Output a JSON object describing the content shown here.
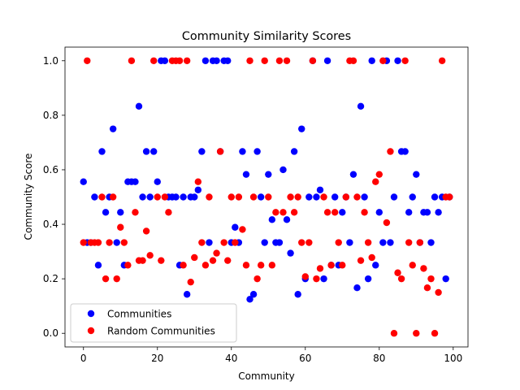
{
  "chart_data": {
    "type": "scatter",
    "title": "Community Similarity Scores",
    "xlabel": "Community",
    "ylabel": "Community Score",
    "xlim": [
      -5,
      104
    ],
    "ylim": [
      -0.05,
      1.05
    ],
    "xticks": [
      0,
      20,
      40,
      60,
      80,
      100
    ],
    "yticks": [
      0.0,
      0.2,
      0.4,
      0.6,
      0.8,
      1.0
    ],
    "ytick_labels": [
      "0.0",
      "0.2",
      "0.4",
      "0.6",
      "0.8",
      "1.0"
    ],
    "legend_position": "lower-left",
    "grid": false,
    "series": [
      {
        "name": "Communities",
        "color": "#0000ff",
        "points": [
          [
            0,
            0.556
          ],
          [
            1,
            0.333
          ],
          [
            2,
            0.333
          ],
          [
            3,
            0.5
          ],
          [
            4,
            0.25
          ],
          [
            5,
            0.667
          ],
          [
            6,
            0.444
          ],
          [
            7,
            0.5
          ],
          [
            8,
            0.75
          ],
          [
            9,
            0.333
          ],
          [
            10,
            0.444
          ],
          [
            11,
            0.25
          ],
          [
            12,
            0.556
          ],
          [
            13,
            0.556
          ],
          [
            14,
            0.556
          ],
          [
            15,
            0.833
          ],
          [
            16,
            0.5
          ],
          [
            17,
            0.667
          ],
          [
            18,
            0.5
          ],
          [
            19,
            0.667
          ],
          [
            20,
            0.556
          ],
          [
            21,
            1.0
          ],
          [
            22,
            1.0
          ],
          [
            23,
            0.5
          ],
          [
            24,
            0.5
          ],
          [
            25,
            0.5
          ],
          [
            26,
            0.25
          ],
          [
            27,
            0.5
          ],
          [
            28,
            0.143
          ],
          [
            29,
            0.5
          ],
          [
            30,
            0.5
          ],
          [
            31,
            0.526
          ],
          [
            32,
            0.667
          ],
          [
            33,
            1.0
          ],
          [
            34,
            0.333
          ],
          [
            35,
            1.0
          ],
          [
            36,
            1.0
          ],
          [
            37,
            0.667
          ],
          [
            38,
            1.0
          ],
          [
            39,
            1.0
          ],
          [
            40,
            0.333
          ],
          [
            41,
            0.389
          ],
          [
            42,
            0.333
          ],
          [
            43,
            0.667
          ],
          [
            44,
            0.583
          ],
          [
            45,
            0.125
          ],
          [
            46,
            0.143
          ],
          [
            47,
            0.667
          ],
          [
            48,
            0.5
          ],
          [
            49,
            0.333
          ],
          [
            50,
            0.583
          ],
          [
            51,
            0.417
          ],
          [
            52,
            0.333
          ],
          [
            53,
            0.333
          ],
          [
            54,
            0.6
          ],
          [
            55,
            0.417
          ],
          [
            56,
            0.294
          ],
          [
            57,
            0.667
          ],
          [
            58,
            0.143
          ],
          [
            59,
            0.75
          ],
          [
            60,
            0.2
          ],
          [
            61,
            0.5
          ],
          [
            62,
            1.0
          ],
          [
            63,
            0.5
          ],
          [
            64,
            0.526
          ],
          [
            65,
            0.2
          ],
          [
            66,
            1.0
          ],
          [
            67,
            0.25
          ],
          [
            68,
            0.5
          ],
          [
            69,
            0.25
          ],
          [
            70,
            0.444
          ],
          [
            71,
            0.5
          ],
          [
            72,
            0.333
          ],
          [
            73,
            0.583
          ],
          [
            74,
            0.167
          ],
          [
            75,
            0.833
          ],
          [
            76,
            0.5
          ],
          [
            77,
            0.2
          ],
          [
            78,
            1.0
          ],
          [
            79,
            0.25
          ],
          [
            80,
            0.444
          ],
          [
            81,
            0.333
          ],
          [
            82,
            1.0
          ],
          [
            83,
            0.333
          ],
          [
            84,
            0.5
          ],
          [
            85,
            1.0
          ],
          [
            86,
            0.667
          ],
          [
            87,
            0.667
          ],
          [
            88,
            0.444
          ],
          [
            89,
            0.5
          ],
          [
            90,
            0.583
          ],
          [
            91,
            0.333
          ],
          [
            92,
            0.444
          ],
          [
            93,
            0.444
          ],
          [
            94,
            0.333
          ],
          [
            95,
            0.5
          ],
          [
            96,
            0.444
          ],
          [
            97,
            0.5
          ],
          [
            98,
            0.2
          ],
          [
            99,
            0.5
          ]
        ]
      },
      {
        "name": "Random Communities",
        "color": "#ff0000",
        "points": [
          [
            0,
            0.333
          ],
          [
            1,
            1.0
          ],
          [
            2,
            0.333
          ],
          [
            3,
            0.333
          ],
          [
            4,
            0.333
          ],
          [
            5,
            0.5
          ],
          [
            6,
            0.2
          ],
          [
            7,
            0.333
          ],
          [
            8,
            0.5
          ],
          [
            9,
            0.2
          ],
          [
            10,
            0.389
          ],
          [
            11,
            0.333
          ],
          [
            12,
            0.25
          ],
          [
            13,
            1.0
          ],
          [
            14,
            0.444
          ],
          [
            15,
            0.267
          ],
          [
            16,
            0.267
          ],
          [
            17,
            0.375
          ],
          [
            18,
            0.286
          ],
          [
            19,
            1.0
          ],
          [
            20,
            0.5
          ],
          [
            21,
            0.267
          ],
          [
            22,
            0.5
          ],
          [
            23,
            0.444
          ],
          [
            24,
            1.0
          ],
          [
            25,
            1.0
          ],
          [
            26,
            1.0
          ],
          [
            27,
            0.25
          ],
          [
            28,
            1.0
          ],
          [
            29,
            0.188
          ],
          [
            30,
            0.278
          ],
          [
            31,
            0.556
          ],
          [
            32,
            0.333
          ],
          [
            33,
            0.25
          ],
          [
            34,
            0.5
          ],
          [
            35,
            0.267
          ],
          [
            36,
            0.294
          ],
          [
            37,
            0.667
          ],
          [
            38,
            0.333
          ],
          [
            39,
            0.267
          ],
          [
            40,
            0.5
          ],
          [
            41,
            0.333
          ],
          [
            42,
            0.5
          ],
          [
            43,
            0.381
          ],
          [
            44,
            0.25
          ],
          [
            45,
            1.0
          ],
          [
            46,
            0.5
          ],
          [
            47,
            0.2
          ],
          [
            48,
            0.25
          ],
          [
            49,
            1.0
          ],
          [
            50,
            0.5
          ],
          [
            51,
            0.25
          ],
          [
            52,
            0.444
          ],
          [
            53,
            1.0
          ],
          [
            54,
            0.444
          ],
          [
            55,
            1.0
          ],
          [
            56,
            0.5
          ],
          [
            57,
            0.444
          ],
          [
            58,
            0.5
          ],
          [
            59,
            0.333
          ],
          [
            60,
            0.208
          ],
          [
            61,
            0.333
          ],
          [
            62,
            1.0
          ],
          [
            63,
            0.2
          ],
          [
            64,
            0.238
          ],
          [
            65,
            0.5
          ],
          [
            66,
            0.444
          ],
          [
            67,
            0.25
          ],
          [
            68,
            0.444
          ],
          [
            69,
            0.333
          ],
          [
            70,
            0.25
          ],
          [
            71,
            0.5
          ],
          [
            72,
            1.0
          ],
          [
            73,
            1.0
          ],
          [
            74,
            0.5
          ],
          [
            75,
            0.267
          ],
          [
            76,
            0.444
          ],
          [
            77,
            0.333
          ],
          [
            78,
            0.278
          ],
          [
            79,
            0.556
          ],
          [
            80,
            0.583
          ],
          [
            81,
            1.0
          ],
          [
            82,
            0.406
          ],
          [
            83,
            0.667
          ],
          [
            84,
            0.0
          ],
          [
            85,
            0.222
          ],
          [
            86,
            0.2
          ],
          [
            87,
            1.0
          ],
          [
            88,
            0.333
          ],
          [
            89,
            0.25
          ],
          [
            90,
            0.0
          ],
          [
            91,
            0.333
          ],
          [
            92,
            0.238
          ],
          [
            93,
            0.167
          ],
          [
            94,
            0.2
          ],
          [
            95,
            0.0
          ],
          [
            96,
            0.15
          ],
          [
            97,
            1.0
          ],
          [
            98,
            0.5
          ],
          [
            99,
            0.5
          ]
        ]
      }
    ]
  }
}
